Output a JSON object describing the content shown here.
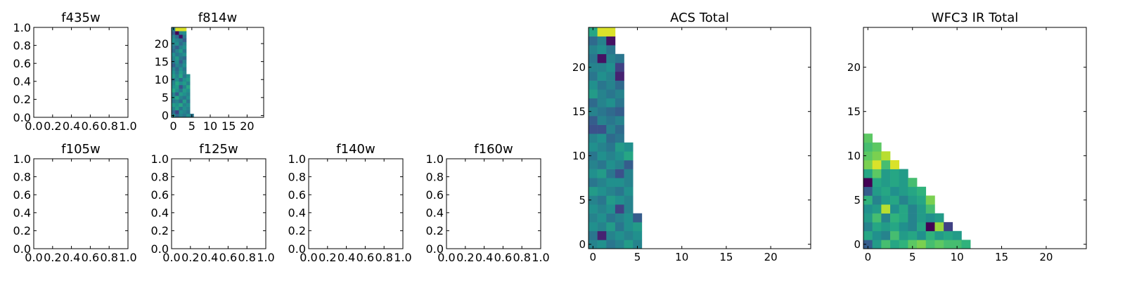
{
  "figure": {
    "background": "#ffffff",
    "colormap": "viridis"
  },
  "chart_data": [
    {
      "type": "heatmap",
      "title": "f435w",
      "xlim": [
        0,
        1
      ],
      "ylim": [
        0,
        1
      ],
      "xticks": [
        "0.0",
        "0.2",
        "0.4",
        "0.6",
        "0.8",
        "1.0"
      ],
      "yticks": [
        "0.0",
        "0.2",
        "0.4",
        "0.6",
        "0.8",
        "1.0"
      ],
      "cells": []
    },
    {
      "type": "heatmap",
      "title": "f814w",
      "xlim": [
        -0.5,
        24.5
      ],
      "ylim": [
        -0.5,
        24.5
      ],
      "xticks": [
        "0",
        "5",
        "10",
        "15",
        "20"
      ],
      "yticks": [
        "0",
        "5",
        "10",
        "15",
        "20"
      ],
      "rows": [
        {
          "y": 0,
          "values": [
            0.5,
            0.35,
            0.45,
            0.4,
            0.5,
            0.4
          ]
        },
        {
          "y": 1,
          "values": [
            0.35,
            0.2,
            0.5,
            0.45,
            0.4
          ]
        },
        {
          "y": 2,
          "values": [
            0.45,
            0.55,
            0.4,
            0.5,
            0.45
          ]
        },
        {
          "y": 3,
          "values": [
            0.55,
            0.5,
            0.6,
            0.45,
            0.5
          ]
        },
        {
          "y": 4,
          "values": [
            0.4,
            0.45,
            0.35,
            0.55,
            0.4
          ]
        },
        {
          "y": 5,
          "values": [
            0.5,
            0.6,
            0.45,
            0.4,
            0.5
          ]
        },
        {
          "y": 6,
          "values": [
            0.45,
            0.3,
            0.55,
            0.5,
            0.45
          ]
        },
        {
          "y": 7,
          "values": [
            0.6,
            0.5,
            0.4,
            0.55,
            0.5
          ]
        },
        {
          "y": 8,
          "values": [
            0.5,
            0.55,
            0.25,
            0.45,
            0.6
          ]
        },
        {
          "y": 9,
          "values": [
            0.45,
            0.6,
            0.5,
            0.55,
            0.45
          ]
        },
        {
          "y": 10,
          "values": [
            0.4,
            0.5,
            0.35,
            0.5,
            0.55
          ]
        },
        {
          "y": 11,
          "values": [
            0.55,
            0.45,
            0.6,
            0.4,
            0.5
          ]
        },
        {
          "y": 12,
          "values": [
            0.5,
            0.4,
            0.55,
            0.45
          ]
        },
        {
          "y": 13,
          "values": [
            0.45,
            0.35,
            0.5,
            0.4
          ]
        },
        {
          "y": 14,
          "values": [
            0.3,
            0.45,
            0.4,
            0.5
          ]
        },
        {
          "y": 15,
          "values": [
            0.4,
            0.5,
            0.3,
            0.45
          ]
        },
        {
          "y": 16,
          "values": [
            0.45,
            0.55,
            0.4,
            0.35
          ]
        },
        {
          "y": 17,
          "values": [
            0.5,
            0.4,
            0.45,
            0.5
          ]
        },
        {
          "y": 18,
          "values": [
            0.35,
            0.45,
            0.55,
            0.4
          ]
        },
        {
          "y": 19,
          "values": [
            0.4,
            0.3,
            0.45,
            0.5
          ]
        },
        {
          "y": 20,
          "values": [
            0.45,
            0.5,
            0.35,
            0.45
          ]
        },
        {
          "y": 21,
          "values": [
            0.5,
            0.45,
            0.4,
            0.3
          ]
        },
        {
          "y": 22,
          "values": [
            0.45,
            0.35,
            0.05,
            0.4
          ]
        },
        {
          "y": 23,
          "values": [
            0.3,
            0.0,
            0.45,
            0.5
          ]
        },
        {
          "y": 24,
          "values": [
            0.45,
            0.95,
            0.95,
            0.95
          ]
        }
      ]
    },
    {
      "type": "heatmap",
      "title": "f105w",
      "xlim": [
        0,
        1
      ],
      "ylim": [
        0,
        1
      ],
      "xticks": [
        "0.0",
        "0.2",
        "0.4",
        "0.6",
        "0.8",
        "1.0"
      ],
      "yticks": [
        "0.0",
        "0.2",
        "0.4",
        "0.6",
        "0.8",
        "1.0"
      ],
      "cells": []
    },
    {
      "type": "heatmap",
      "title": "f125w",
      "xlim": [
        0,
        1
      ],
      "ylim": [
        0,
        1
      ],
      "xticks": [
        "0.0",
        "0.2",
        "0.4",
        "0.6",
        "0.8",
        "1.0"
      ],
      "yticks": [
        "0.0",
        "0.2",
        "0.4",
        "0.6",
        "0.8",
        "1.0"
      ],
      "cells": []
    },
    {
      "type": "heatmap",
      "title": "f140w",
      "xlim": [
        0,
        1
      ],
      "ylim": [
        0,
        1
      ],
      "xticks": [
        "0.0",
        "0.2",
        "0.4",
        "0.6",
        "0.8",
        "1.0"
      ],
      "yticks": [
        "0.0",
        "0.2",
        "0.4",
        "0.6",
        "0.8",
        "1.0"
      ],
      "cells": []
    },
    {
      "type": "heatmap",
      "title": "f160w",
      "xlim": [
        0,
        1
      ],
      "ylim": [
        0,
        1
      ],
      "xticks": [
        "0.0",
        "0.2",
        "0.4",
        "0.6",
        "0.8",
        "1.0"
      ],
      "yticks": [
        "0.0",
        "0.2",
        "0.4",
        "0.6",
        "0.8",
        "1.0"
      ],
      "cells": []
    },
    {
      "type": "heatmap",
      "title": "ACS Total",
      "xlim": [
        -0.5,
        24.5
      ],
      "ylim": [
        -0.5,
        24.5
      ],
      "xticks": [
        "0",
        "5",
        "10",
        "15",
        "20"
      ],
      "yticks": [
        "0",
        "5",
        "10",
        "15",
        "20"
      ],
      "rows": [
        {
          "y": 0,
          "values": [
            0.45,
            0.5,
            0.4,
            0.45,
            0.55,
            0.45
          ]
        },
        {
          "y": 1,
          "values": [
            0.4,
            0.1,
            0.45,
            0.5,
            0.45,
            0.5
          ]
        },
        {
          "y": 2,
          "values": [
            0.5,
            0.45,
            0.55,
            0.4,
            0.5,
            0.55
          ]
        },
        {
          "y": 3,
          "values": [
            0.45,
            0.5,
            0.4,
            0.45,
            0.5,
            0.3
          ]
        },
        {
          "y": 4,
          "values": [
            0.5,
            0.45,
            0.5,
            0.2,
            0.45
          ]
        },
        {
          "y": 5,
          "values": [
            0.45,
            0.4,
            0.55,
            0.5,
            0.45
          ]
        },
        {
          "y": 6,
          "values": [
            0.55,
            0.5,
            0.45,
            0.4,
            0.5
          ]
        },
        {
          "y": 7,
          "values": [
            0.4,
            0.45,
            0.5,
            0.5,
            0.45
          ]
        },
        {
          "y": 8,
          "values": [
            0.5,
            0.55,
            0.4,
            0.25,
            0.45
          ]
        },
        {
          "y": 9,
          "values": [
            0.45,
            0.4,
            0.5,
            0.45,
            0.3
          ]
        },
        {
          "y": 10,
          "values": [
            0.4,
            0.5,
            0.45,
            0.5,
            0.6
          ]
        },
        {
          "y": 11,
          "values": [
            0.5,
            0.45,
            0.4,
            0.55,
            0.5
          ]
        },
        {
          "y": 12,
          "values": [
            0.45,
            0.5,
            0.35,
            0.4
          ]
        },
        {
          "y": 13,
          "values": [
            0.25,
            0.25,
            0.45,
            0.35
          ]
        },
        {
          "y": 14,
          "values": [
            0.3,
            0.45,
            0.4,
            0.45
          ]
        },
        {
          "y": 15,
          "values": [
            0.45,
            0.4,
            0.35,
            0.3
          ]
        },
        {
          "y": 16,
          "values": [
            0.35,
            0.45,
            0.5,
            0.4
          ]
        },
        {
          "y": 17,
          "values": [
            0.55,
            0.45,
            0.4,
            0.45
          ]
        },
        {
          "y": 18,
          "values": [
            0.5,
            0.4,
            0.45,
            0.35
          ]
        },
        {
          "y": 19,
          "values": [
            0.4,
            0.5,
            0.45,
            0.1
          ]
        },
        {
          "y": 20,
          "values": [
            0.45,
            0.45,
            0.5,
            0.2
          ]
        },
        {
          "y": 21,
          "values": [
            0.4,
            0.05,
            0.45,
            0.4
          ]
        },
        {
          "y": 22,
          "values": [
            0.45,
            0.5,
            0.4
          ]
        },
        {
          "y": 23,
          "values": [
            0.35,
            0.45,
            0.05
          ]
        },
        {
          "y": 24,
          "values": [
            0.6,
            0.95,
            0.95
          ]
        }
      ]
    },
    {
      "type": "heatmap",
      "title": "WFC3 IR Total",
      "xlim": [
        -0.5,
        24.5
      ],
      "ylim": [
        -0.5,
        24.5
      ],
      "xticks": [
        "0",
        "5",
        "10",
        "15",
        "20"
      ],
      "yticks": [
        "0",
        "5",
        "10",
        "15",
        "20"
      ],
      "rows": [
        {
          "y": 0,
          "values": [
            0.3,
            0.55,
            0.7,
            0.6,
            0.65,
            0.75,
            0.8,
            0.7,
            0.75,
            0.7,
            0.7,
            0.65
          ]
        },
        {
          "y": 1,
          "values": [
            0.6,
            0.5,
            0.45,
            0.7,
            0.55,
            0.6,
            0.5,
            0.65,
            0.55,
            0.6,
            0.55
          ]
        },
        {
          "y": 2,
          "values": [
            0.45,
            0.6,
            0.55,
            0.6,
            0.5,
            0.45,
            0.6,
            0.0,
            0.85,
            0.2
          ]
        },
        {
          "y": 3,
          "values": [
            0.55,
            0.7,
            0.45,
            0.65,
            0.6,
            0.45,
            0.55,
            0.5,
            0.55
          ]
        },
        {
          "y": 4,
          "values": [
            0.5,
            0.55,
            0.9,
            0.5,
            0.6,
            0.45,
            0.55,
            0.7
          ]
        },
        {
          "y": 5,
          "values": [
            0.65,
            0.45,
            0.55,
            0.6,
            0.45,
            0.55,
            0.6,
            0.8
          ]
        },
        {
          "y": 6,
          "values": [
            0.3,
            0.55,
            0.6,
            0.5,
            0.55,
            0.6,
            0.65
          ]
        },
        {
          "y": 7,
          "values": [
            0.0,
            0.6,
            0.55,
            0.6,
            0.55,
            0.7
          ]
        },
        {
          "y": 8,
          "values": [
            0.6,
            0.75,
            0.55,
            0.6,
            0.55
          ]
        },
        {
          "y": 9,
          "values": [
            0.8,
            0.95,
            0.7,
            0.95
          ]
        },
        {
          "y": 10,
          "values": [
            0.75,
            0.8,
            0.9
          ]
        },
        {
          "y": 11,
          "values": [
            0.7,
            0.75
          ]
        },
        {
          "y": 12,
          "values": [
            0.75
          ]
        }
      ]
    }
  ]
}
